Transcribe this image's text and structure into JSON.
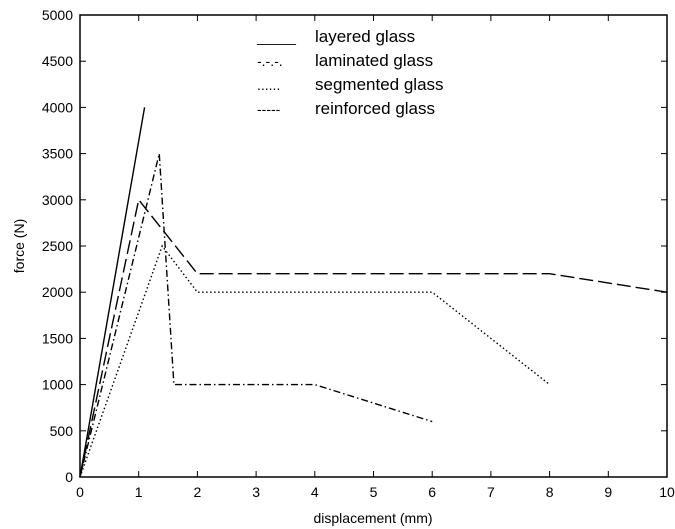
{
  "chart_data": {
    "type": "line",
    "xlabel": "displacement (mm)",
    "ylabel": "force (N)",
    "xlim": [
      0,
      10
    ],
    "ylim": [
      0,
      5000
    ],
    "xticks": [
      0,
      1,
      2,
      3,
      4,
      5,
      6,
      7,
      8,
      9,
      10
    ],
    "yticks": [
      0,
      500,
      1000,
      1500,
      2000,
      2500,
      3000,
      3500,
      4000,
      4500,
      5000
    ],
    "grid": false,
    "legend_position": "top-center",
    "series": [
      {
        "name": "layered glass",
        "legend_sample": "_____",
        "style": "solid",
        "x": [
          0,
          1.1
        ],
        "y": [
          0,
          4000
        ]
      },
      {
        "name": "laminated glass",
        "legend_sample": "-.-.-.",
        "style": "dashdot",
        "x": [
          0,
          1.35,
          1.6,
          4,
          6
        ],
        "y": [
          0,
          3500,
          1000,
          1000,
          600
        ]
      },
      {
        "name": "segmented glass",
        "legend_sample": "......",
        "style": "dotted",
        "x": [
          0,
          1.4,
          2,
          6,
          8
        ],
        "y": [
          0,
          2500,
          2000,
          2000,
          1000
        ]
      },
      {
        "name": "reinforced glass",
        "legend_sample": "-----",
        "style": "dashed",
        "x": [
          0,
          1,
          2,
          8,
          10
        ],
        "y": [
          0,
          3000,
          2200,
          2200,
          2000
        ]
      }
    ]
  }
}
